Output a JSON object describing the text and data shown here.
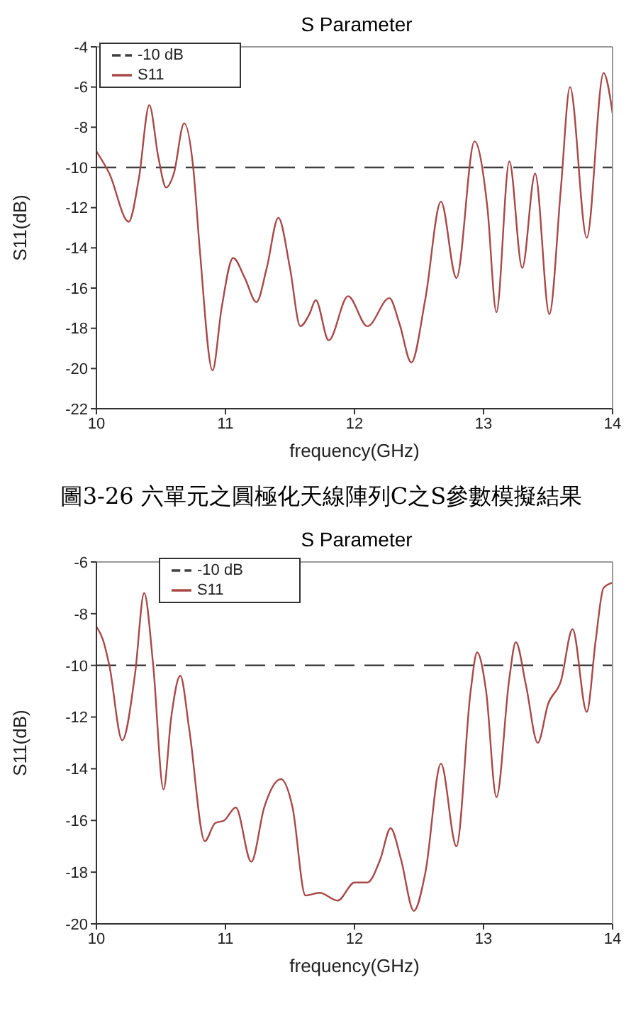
{
  "chart_data": [
    {
      "type": "line",
      "title": "S Parameter",
      "xlabel": "frequency(GHz)",
      "ylabel": "S11(dB)",
      "xlim": [
        10,
        14
      ],
      "xticks": [
        10,
        11,
        12,
        13,
        14
      ],
      "ylim": [
        -22,
        -4
      ],
      "yticks": [
        -22,
        -20,
        -18,
        -16,
        -14,
        -12,
        -10,
        -8,
        -6,
        -4
      ],
      "legend": "top left",
      "marker": "none",
      "annotations": [
        "圖3-26 六單元之圓極化天線陣列C之S參數模擬結果"
      ],
      "series": [
        {
          "name": "-10 dB",
          "color": "#404040",
          "line_style": "dashed",
          "x": [
            10,
            14
          ],
          "values": [
            -10,
            -10
          ]
        },
        {
          "name": "S11",
          "color": "#a84848",
          "line_style": "solid",
          "x": [
            10.0,
            10.1,
            10.25,
            10.33,
            10.41,
            10.48,
            10.54,
            10.6,
            10.68,
            10.75,
            10.8,
            10.9,
            10.97,
            11.06,
            11.15,
            11.24,
            11.32,
            11.41,
            11.5,
            11.58,
            11.65,
            11.7,
            11.8,
            11.95,
            12.1,
            12.27,
            12.35,
            12.44,
            12.55,
            12.67,
            12.79,
            12.93,
            13.03,
            13.1,
            13.2,
            13.3,
            13.4,
            13.51,
            13.6,
            13.67,
            13.8,
            13.93,
            14.0
          ],
          "values": [
            -9.2,
            -10.3,
            -12.7,
            -10.5,
            -6.9,
            -9.5,
            -11.0,
            -10.3,
            -7.8,
            -10.0,
            -14,
            -20.1,
            -17,
            -14.5,
            -15.5,
            -16.7,
            -15,
            -12.5,
            -15,
            -17.9,
            -17.3,
            -16.6,
            -18.6,
            -16.4,
            -17.9,
            -16.5,
            -17.8,
            -19.7,
            -16.5,
            -11.7,
            -15.5,
            -8.7,
            -12,
            -17.2,
            -9.7,
            -15,
            -10.3,
            -17.3,
            -11,
            -6.0,
            -13.5,
            -5.3,
            -7.3
          ]
        }
      ]
    },
    {
      "type": "line",
      "title": "S Parameter",
      "xlabel": "frequency(GHz)",
      "ylabel": "S11(dB)",
      "xlim": [
        10,
        14
      ],
      "xticks": [
        10,
        11,
        12,
        13,
        14
      ],
      "ylim": [
        -20,
        -6
      ],
      "yticks": [
        -20,
        -18,
        -16,
        -14,
        -12,
        -10,
        -8,
        -6
      ],
      "legend": "top left",
      "marker": "none",
      "series": [
        {
          "name": "-10 dB",
          "color": "#404040",
          "line_style": "dashed",
          "x": [
            10,
            14
          ],
          "values": [
            -10,
            -10
          ]
        },
        {
          "name": "S11",
          "color": "#a84848",
          "line_style": "solid",
          "x": [
            10.0,
            10.05,
            10.1,
            10.2,
            10.3,
            10.37,
            10.44,
            10.52,
            10.58,
            10.65,
            10.72,
            10.84,
            10.92,
            10.99,
            11.08,
            11.2,
            11.3,
            11.43,
            11.52,
            11.62,
            11.73,
            11.87,
            12.0,
            12.1,
            12.2,
            12.28,
            12.36,
            12.46,
            12.55,
            12.67,
            12.79,
            12.9,
            12.95,
            13.02,
            13.1,
            13.2,
            13.25,
            13.33,
            13.42,
            13.5,
            13.6,
            13.69,
            13.8,
            13.87,
            13.93,
            14.0
          ],
          "values": [
            -8.5,
            -9,
            -10,
            -12.9,
            -10.3,
            -7.2,
            -10,
            -14.8,
            -12,
            -10.4,
            -12.5,
            -16.8,
            -16.1,
            -16.0,
            -15.5,
            -17.6,
            -15.5,
            -14.4,
            -15.5,
            -18.9,
            -18.8,
            -19.1,
            -18.4,
            -18.4,
            -17.5,
            -16.3,
            -17.5,
            -19.5,
            -18,
            -13.8,
            -17,
            -11,
            -9.5,
            -11,
            -15.1,
            -10.5,
            -9.1,
            -10.8,
            -13,
            -11.5,
            -10.6,
            -8.6,
            -11.8,
            -9,
            -7,
            -6.8
          ]
        }
      ]
    }
  ]
}
